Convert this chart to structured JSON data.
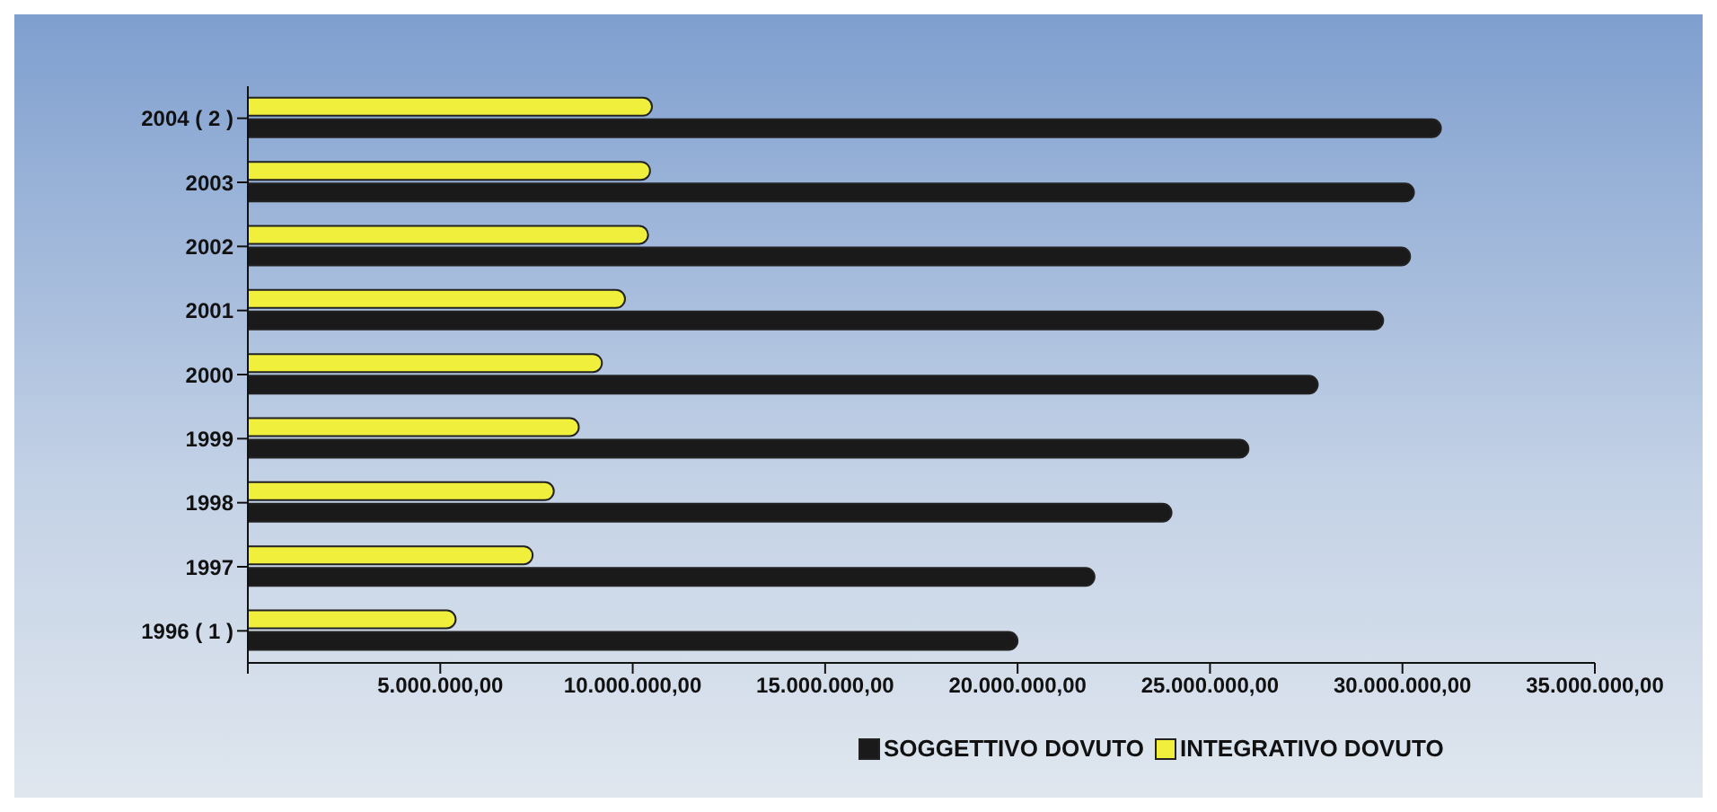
{
  "chart_data": {
    "type": "bar",
    "orientation": "horizontal",
    "categories": [
      "2004 ( 2 )",
      "2003",
      "2002",
      "2001",
      "2000",
      "1999",
      "1998",
      "1997",
      "1996 ( 1 )"
    ],
    "series": [
      {
        "name": "SOGGETTIVO DOVUTO",
        "color": "#1a1a1a",
        "values": [
          31000000,
          30300000,
          30200000,
          29500000,
          27800000,
          26000000,
          24000000,
          22000000,
          20000000
        ]
      },
      {
        "name": "INTEGRATIVO DOVUTO",
        "color": "#f0f03c",
        "values": [
          10500000,
          10450000,
          10400000,
          9800000,
          9200000,
          8600000,
          7950000,
          7400000,
          5400000
        ]
      }
    ],
    "xlim": [
      0,
      35000000
    ],
    "xticks": [
      {
        "value": 0,
        "label": null
      },
      {
        "value": 5000000,
        "label": "5.000.000,00"
      },
      {
        "value": 10000000,
        "label": "10.000.000,00"
      },
      {
        "value": 15000000,
        "label": "15.000.000,00"
      },
      {
        "value": 20000000,
        "label": "20.000.000,00"
      },
      {
        "value": 25000000,
        "label": "25.000.000,00"
      },
      {
        "value": 30000000,
        "label": "30.000.000,00"
      },
      {
        "value": 35000000,
        "label": "35.000.000,00"
      }
    ],
    "grid": false,
    "legend": "bottom"
  }
}
